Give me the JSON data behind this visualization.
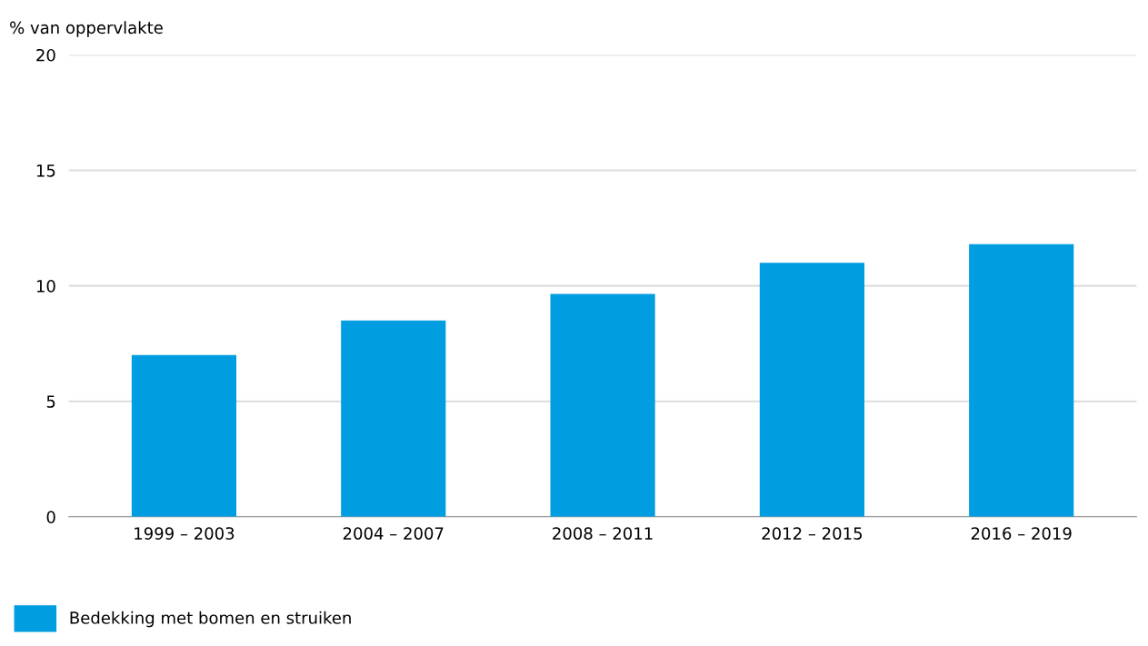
{
  "chart_data": {
    "type": "bar",
    "ylabel": "% van oppervlakte",
    "categories": [
      "1999 – 2003",
      "2004 – 2007",
      "2008 – 2011",
      "2012 – 2015",
      "2016 – 2019"
    ],
    "series": [
      {
        "name": "Bedekking met bomen en struiken",
        "color": "#009de0",
        "values": [
          7.0,
          8.5,
          9.65,
          11.0,
          11.8
        ]
      }
    ],
    "ylim": [
      0,
      20
    ],
    "yticks": [
      0,
      5,
      10,
      15,
      20
    ],
    "grid": "y",
    "legend": "bottom left"
  }
}
